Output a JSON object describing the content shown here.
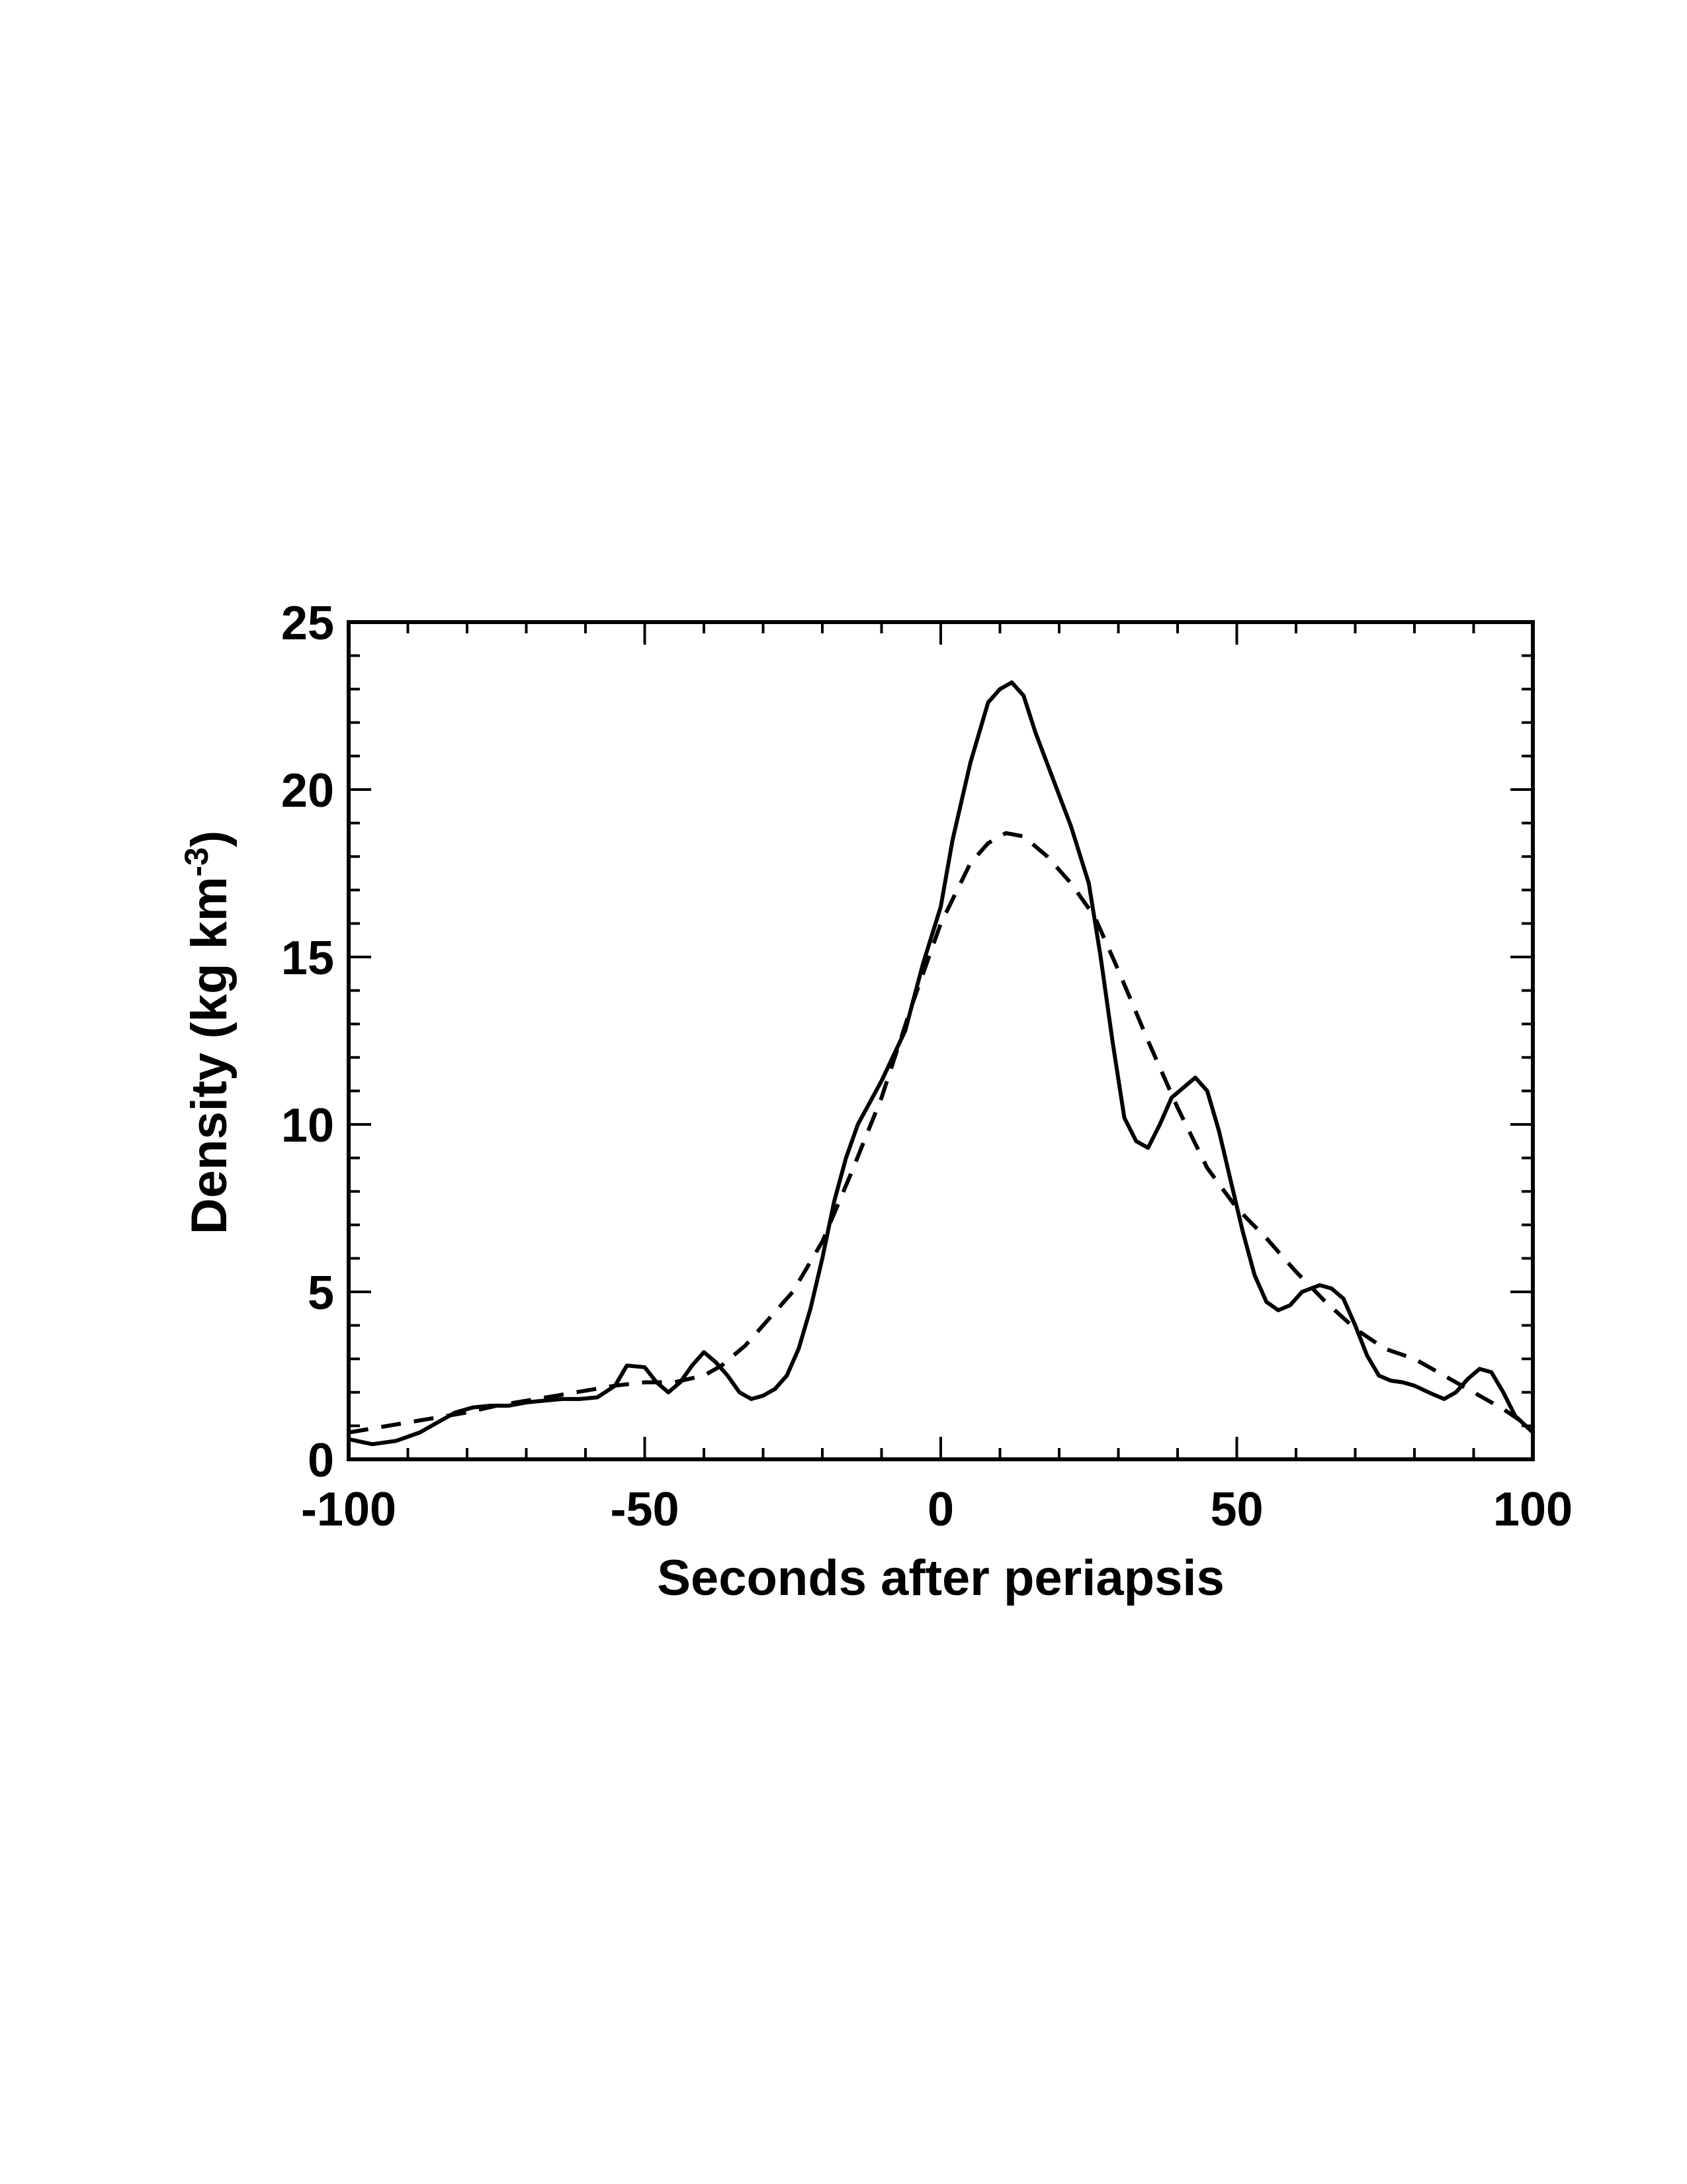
{
  "chart_data": {
    "type": "line",
    "title": "",
    "xlabel": "Seconds after periapsis",
    "ylabel_main": "Density (kg km",
    "ylabel_sup": "-3",
    "ylabel_close": ")",
    "xlim": [
      -100,
      100
    ],
    "ylim": [
      0,
      25
    ],
    "xticks": [
      -100,
      -50,
      0,
      50,
      100
    ],
    "yticks": [
      0,
      5,
      10,
      15,
      20,
      25
    ],
    "xtick_labels": [
      "-100",
      "-50",
      "0",
      "50",
      "100"
    ],
    "ytick_labels": [
      "0",
      "5",
      "10",
      "15",
      "20",
      "25"
    ],
    "x_minor_step": 10,
    "y_minor_step": 1,
    "grid": false,
    "legend": "none",
    "colors": {
      "lines": "#000000",
      "background": "#ffffff"
    },
    "series": [
      {
        "style": "solid",
        "points": [
          [
            -100,
            0.6
          ],
          [
            -96,
            0.45
          ],
          [
            -92,
            0.55
          ],
          [
            -88,
            0.8
          ],
          [
            -85,
            1.1
          ],
          [
            -82,
            1.4
          ],
          [
            -79,
            1.55
          ],
          [
            -76,
            1.6
          ],
          [
            -73,
            1.6
          ],
          [
            -70,
            1.7
          ],
          [
            -67,
            1.75
          ],
          [
            -64,
            1.8
          ],
          [
            -61,
            1.8
          ],
          [
            -58,
            1.85
          ],
          [
            -55,
            2.2
          ],
          [
            -53,
            2.8
          ],
          [
            -50,
            2.75
          ],
          [
            -48,
            2.3
          ],
          [
            -46,
            2.0
          ],
          [
            -44,
            2.3
          ],
          [
            -42,
            2.8
          ],
          [
            -40,
            3.2
          ],
          [
            -38,
            2.9
          ],
          [
            -36,
            2.5
          ],
          [
            -34,
            2.0
          ],
          [
            -32,
            1.8
          ],
          [
            -30,
            1.9
          ],
          [
            -28,
            2.1
          ],
          [
            -26,
            2.5
          ],
          [
            -24,
            3.3
          ],
          [
            -22,
            4.5
          ],
          [
            -20,
            6.0
          ],
          [
            -18,
            7.7
          ],
          [
            -16,
            9.0
          ],
          [
            -14,
            10.0
          ],
          [
            -10,
            11.3
          ],
          [
            -6,
            12.8
          ],
          [
            -3,
            14.8
          ],
          [
            0,
            16.5
          ],
          [
            2,
            18.5
          ],
          [
            5,
            20.8
          ],
          [
            8,
            22.6
          ],
          [
            10,
            23.0
          ],
          [
            12,
            23.2
          ],
          [
            14,
            22.8
          ],
          [
            16,
            21.7
          ],
          [
            19,
            20.3
          ],
          [
            22,
            18.9
          ],
          [
            25,
            17.2
          ],
          [
            27,
            15.0
          ],
          [
            29,
            12.5
          ],
          [
            31,
            10.2
          ],
          [
            33,
            9.5
          ],
          [
            35,
            9.3
          ],
          [
            37,
            10.0
          ],
          [
            39,
            10.8
          ],
          [
            41,
            11.1
          ],
          [
            43,
            11.4
          ],
          [
            45,
            11.0
          ],
          [
            47,
            9.8
          ],
          [
            49,
            8.3
          ],
          [
            51,
            6.8
          ],
          [
            53,
            5.5
          ],
          [
            55,
            4.7
          ],
          [
            57,
            4.45
          ],
          [
            59,
            4.6
          ],
          [
            61,
            5.0
          ],
          [
            64,
            5.2
          ],
          [
            66,
            5.1
          ],
          [
            68,
            4.8
          ],
          [
            70,
            4.0
          ],
          [
            72,
            3.1
          ],
          [
            74,
            2.5
          ],
          [
            76,
            2.35
          ],
          [
            78,
            2.3
          ],
          [
            80,
            2.2
          ],
          [
            83,
            1.95
          ],
          [
            85,
            1.8
          ],
          [
            87,
            2.0
          ],
          [
            89,
            2.4
          ],
          [
            91,
            2.7
          ],
          [
            93,
            2.6
          ],
          [
            95,
            2.0
          ],
          [
            97,
            1.3
          ],
          [
            100,
            0.8
          ]
        ]
      },
      {
        "style": "dashed",
        "points": [
          [
            -100,
            0.8
          ],
          [
            -95,
            0.95
          ],
          [
            -90,
            1.1
          ],
          [
            -85,
            1.25
          ],
          [
            -80,
            1.4
          ],
          [
            -75,
            1.6
          ],
          [
            -70,
            1.75
          ],
          [
            -65,
            1.9
          ],
          [
            -60,
            2.05
          ],
          [
            -55,
            2.2
          ],
          [
            -50,
            2.3
          ],
          [
            -45,
            2.3
          ],
          [
            -40,
            2.5
          ],
          [
            -37,
            2.8
          ],
          [
            -33,
            3.4
          ],
          [
            -30,
            4.0
          ],
          [
            -25,
            5.0
          ],
          [
            -20,
            6.5
          ],
          [
            -15,
            8.6
          ],
          [
            -10,
            10.8
          ],
          [
            -5,
            13.5
          ],
          [
            0,
            16.0
          ],
          [
            5,
            17.8
          ],
          [
            8,
            18.4
          ],
          [
            11,
            18.7
          ],
          [
            14,
            18.6
          ],
          [
            18,
            18.0
          ],
          [
            22,
            17.2
          ],
          [
            26,
            16.2
          ],
          [
            30,
            14.6
          ],
          [
            35,
            12.5
          ],
          [
            40,
            10.5
          ],
          [
            45,
            8.7
          ],
          [
            50,
            7.5
          ],
          [
            55,
            6.6
          ],
          [
            60,
            5.6
          ],
          [
            65,
            4.7
          ],
          [
            70,
            3.9
          ],
          [
            75,
            3.3
          ],
          [
            80,
            3.0
          ],
          [
            85,
            2.5
          ],
          [
            90,
            2.0
          ],
          [
            95,
            1.5
          ],
          [
            100,
            0.9
          ]
        ]
      }
    ]
  }
}
